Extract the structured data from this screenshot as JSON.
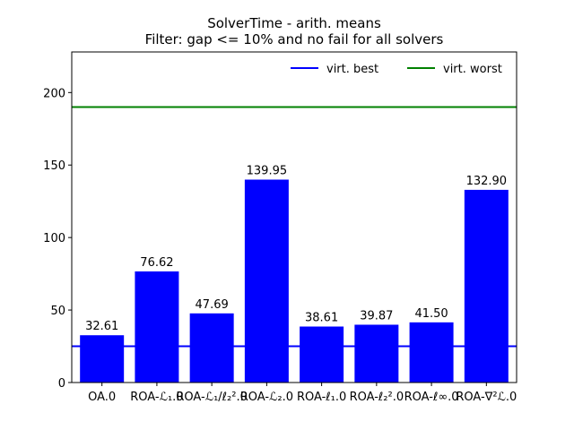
{
  "chart_data": {
    "type": "bar",
    "title": "SolverTime - arith. means",
    "subtitle": "Filter: gap <= 10% and no fail for all solvers",
    "xlabel": "",
    "ylabel": "",
    "categories": [
      "OA.0",
      "ROA-ℒ₁.0",
      "ROA-ℒ₁/ℓ₂².0",
      "ROA-ℒ₂.0",
      "ROA-ℓ₁.0",
      "ROA-ℓ₂².0",
      "ROA-ℓ∞.0",
      "ROA-∇²ℒ.0"
    ],
    "values": [
      32.61,
      76.62,
      47.69,
      139.95,
      38.61,
      39.87,
      41.5,
      132.9
    ],
    "value_labels": [
      "32.61",
      "76.62",
      "47.69",
      "139.95",
      "38.61",
      "39.87",
      "41.50",
      "132.90"
    ],
    "bar_color": "#0000ff",
    "ylim": [
      0,
      228
    ],
    "yticks": [
      0,
      50,
      100,
      150,
      200
    ],
    "grid": false,
    "reference_lines": [
      {
        "name": "virt. best",
        "value": 25,
        "color": "#0000ff"
      },
      {
        "name": "virt. worst",
        "value": 190,
        "color": "#008000"
      }
    ],
    "legend_placement": "top-right"
  }
}
